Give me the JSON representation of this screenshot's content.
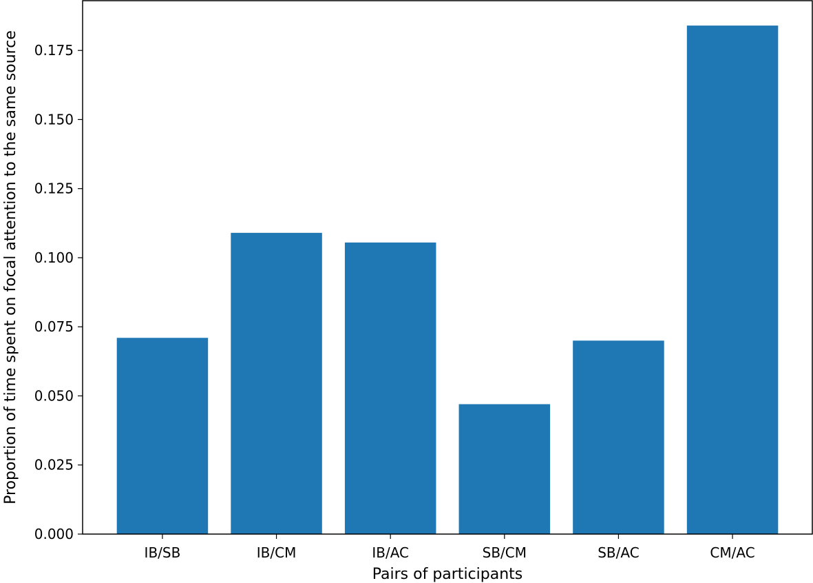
{
  "chart_data": {
    "type": "bar",
    "title": "",
    "xlabel": "Pairs of participants",
    "ylabel": "Proportion of time spent on focal attention to the same source",
    "categories": [
      "IB/SB",
      "IB/CM",
      "IB/AC",
      "SB/CM",
      "SB/AC",
      "CM/AC"
    ],
    "values": [
      0.071,
      0.109,
      0.1055,
      0.047,
      0.07,
      0.184
    ],
    "ylim": [
      0,
      0.193
    ],
    "yticks": [
      0.0,
      0.025,
      0.05,
      0.075,
      0.1,
      0.125,
      0.15,
      0.175
    ],
    "ytick_labels": [
      "0.000",
      "0.025",
      "0.050",
      "0.075",
      "0.100",
      "0.125",
      "0.150",
      "0.175"
    ],
    "bar_color": "#1f77b4",
    "grid": false,
    "legend": "none"
  }
}
